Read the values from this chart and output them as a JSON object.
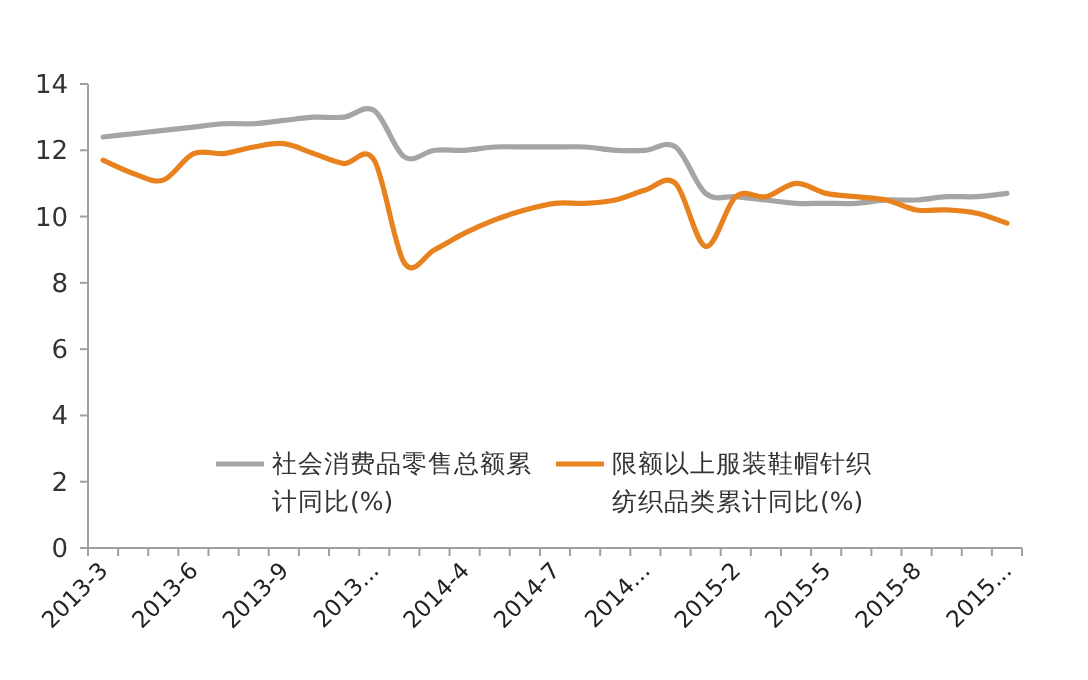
{
  "chart_data": {
    "type": "line",
    "categories": [
      "2013-3",
      null,
      null,
      "2013-6",
      null,
      null,
      "2013-9",
      null,
      null,
      "2013...",
      null,
      null,
      "2014-4",
      null,
      null,
      "2014-7",
      null,
      null,
      "2014...",
      null,
      null,
      "2015-2",
      null,
      null,
      "2015-5",
      null,
      null,
      "2015-8",
      null,
      null,
      "2015..."
    ],
    "series": [
      {
        "name": "社会消费品零售总额累计同比(%)",
        "color": "#a5a5a5",
        "values": [
          12.4,
          12.5,
          12.6,
          12.7,
          12.8,
          12.8,
          12.9,
          13.0,
          13.0,
          13.2,
          11.8,
          12.0,
          12.0,
          12.1,
          12.1,
          12.1,
          12.1,
          12.0,
          12.0,
          12.1,
          10.7,
          10.6,
          10.5,
          10.4,
          10.4,
          10.4,
          10.5,
          10.5,
          10.6,
          10.6,
          10.7
        ]
      },
      {
        "name": "限额以上服装鞋帽针织纺织品类累计同比(%)",
        "color": "#e8821e",
        "values": [
          11.7,
          11.3,
          11.1,
          11.9,
          11.9,
          12.1,
          12.2,
          11.9,
          11.6,
          11.7,
          8.6,
          9.0,
          9.5,
          9.9,
          10.2,
          10.4,
          10.4,
          10.5,
          10.8,
          11.0,
          9.1,
          10.6,
          10.6,
          11.0,
          10.7,
          10.6,
          10.5,
          10.2,
          10.2,
          10.1,
          9.8
        ]
      }
    ],
    "ylim": [
      0,
      14
    ],
    "yticks": [
      0,
      2,
      4,
      6,
      8,
      10,
      12,
      14
    ],
    "grid": false,
    "legend": "bottom",
    "marker": "none",
    "line_style": "solid"
  }
}
